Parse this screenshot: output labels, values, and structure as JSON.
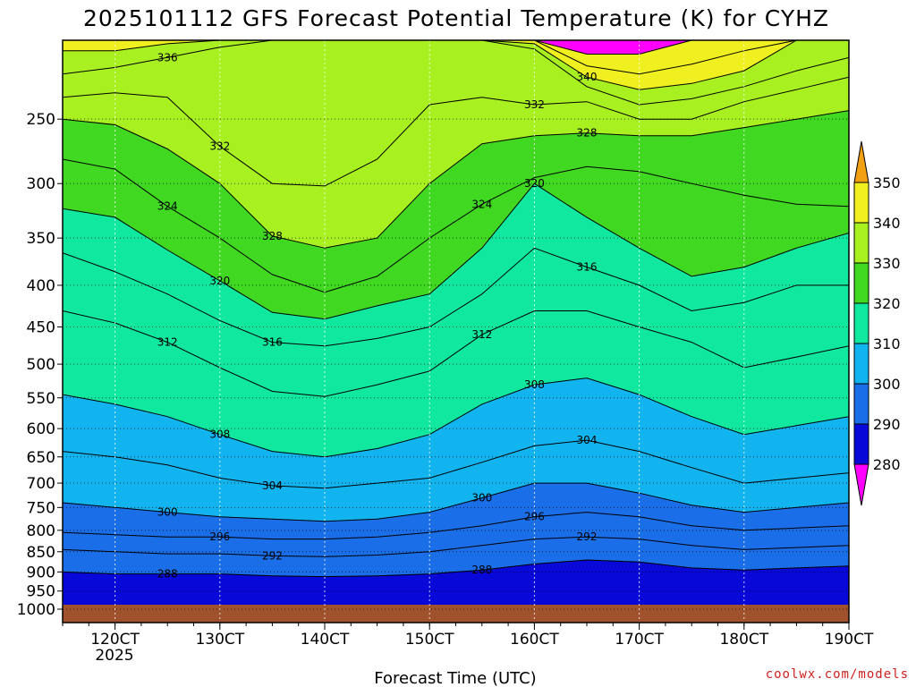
{
  "chart_data": {
    "type": "heatmap",
    "title": "2025101112 GFS Forecast Potential Temperature (K) for CYHZ",
    "xlabel": "Forecast Time (UTC)",
    "ylabel": "",
    "credit": "coolwx.com/models",
    "x_ticks": [
      "120CT",
      "130CT",
      "140CT",
      "150CT",
      "160CT",
      "170CT",
      "180CT",
      "190CT"
    ],
    "x_tick_year": "2025",
    "x_range_days": [
      11.5,
      19.0
    ],
    "y_axis": "pressure (hPa, log)",
    "y_ticks": [
      250,
      300,
      350,
      400,
      450,
      500,
      550,
      600,
      650,
      700,
      750,
      800,
      850,
      900,
      950,
      1000
    ],
    "y_range": [
      200,
      1000
    ],
    "grid": true,
    "colorbar": {
      "placement": "right",
      "labels": [
        "280",
        "290",
        "300",
        "310",
        "320",
        "330",
        "340",
        "350"
      ],
      "levels": [
        280,
        290,
        300,
        310,
        320,
        330,
        340,
        350
      ],
      "colors": [
        "#7a1ae6",
        "#0808d8",
        "#1a6ee8",
        "#12b4f0",
        "#10e8a0",
        "#40d820",
        "#a8f020",
        "#f0f020",
        "#f0a010",
        "#ff00ff"
      ]
    },
    "contour_interval": 4,
    "series": [
      {
        "value": 348,
        "p": [
          200,
          200,
          200,
          200,
          200,
          200,
          200,
          200,
          200,
          200,
          208,
          208,
          200,
          200,
          200,
          200
        ]
      },
      {
        "value": 344,
        "p": [
          200,
          200,
          200,
          200,
          200,
          200,
          200,
          200,
          200,
          200,
          215,
          220,
          214,
          206,
          200,
          200
        ]
      },
      {
        "value": 340,
        "p": [
          206,
          206,
          202,
          200,
          200,
          200,
          200,
          200,
          200,
          202,
          222,
          230,
          226,
          218,
          200,
          200
        ]
      },
      {
        "value": 336,
        "p": [
          220,
          216,
          210,
          204,
          200,
          200,
          200,
          200,
          200,
          205,
          228,
          240,
          236,
          228,
          218,
          210
        ]
      },
      {
        "value": 332,
        "p": [
          235,
          232,
          235,
          270,
          300,
          302,
          280,
          240,
          235,
          240,
          238,
          250,
          250,
          238,
          230,
          222
        ]
      },
      {
        "value": 328,
        "p": [
          250,
          254,
          272,
          300,
          348,
          360,
          350,
          300,
          268,
          262,
          260,
          262,
          262,
          256,
          250,
          244
        ]
      },
      {
        "value": 324,
        "p": [
          280,
          288,
          320,
          350,
          388,
          408,
          390,
          350,
          318,
          295,
          286,
          290,
          300,
          310,
          318,
          320
        ]
      },
      {
        "value": 320,
        "p": [
          322,
          330,
          362,
          395,
          432,
          440,
          424,
          410,
          360,
          300,
          330,
          360,
          390,
          380,
          360,
          345
        ]
      },
      {
        "value": 316,
        "p": [
          365,
          385,
          410,
          442,
          470,
          475,
          465,
          450,
          410,
          360,
          380,
          400,
          430,
          420,
          400,
          400
        ]
      },
      {
        "value": 312,
        "p": [
          430,
          445,
          470,
          505,
          540,
          548,
          530,
          510,
          460,
          430,
          430,
          450,
          470,
          505,
          490,
          475
        ]
      },
      {
        "value": 308,
        "p": [
          545,
          560,
          580,
          610,
          640,
          650,
          635,
          610,
          560,
          530,
          520,
          545,
          580,
          610,
          595,
          580
        ]
      },
      {
        "value": 304,
        "p": [
          640,
          650,
          665,
          690,
          705,
          710,
          700,
          690,
          660,
          630,
          620,
          640,
          670,
          700,
          690,
          680
        ]
      },
      {
        "value": 300,
        "p": [
          740,
          750,
          760,
          770,
          775,
          780,
          775,
          760,
          730,
          700,
          700,
          720,
          745,
          760,
          750,
          740
        ]
      },
      {
        "value": 296,
        "p": [
          805,
          810,
          815,
          815,
          820,
          820,
          815,
          805,
          790,
          770,
          760,
          770,
          790,
          800,
          795,
          790
        ]
      },
      {
        "value": 292,
        "p": [
          845,
          850,
          855,
          855,
          860,
          862,
          858,
          850,
          835,
          820,
          815,
          820,
          835,
          845,
          840,
          835
        ]
      },
      {
        "value": 288,
        "p": [
          900,
          905,
          905,
          905,
          910,
          912,
          910,
          905,
          895,
          880,
          870,
          875,
          890,
          895,
          890,
          885
        ]
      }
    ]
  }
}
